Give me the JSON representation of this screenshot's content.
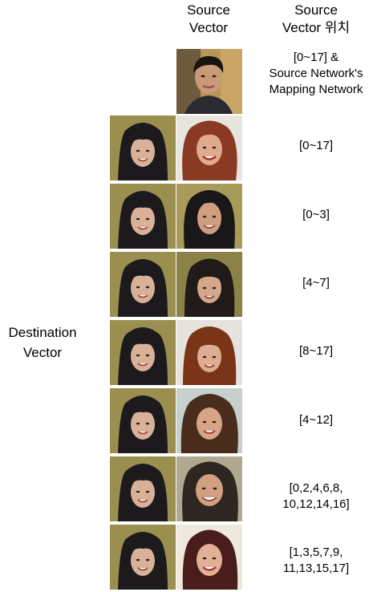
{
  "header": {
    "source_vector": "Source\nVector",
    "source_position": "Source\nVector 위치"
  },
  "destination_label": "Destination\nVector",
  "source_row": {
    "position": "[0~17] &\nSource Network's\nMapping Network"
  },
  "rows": [
    {
      "position": "[0~17]"
    },
    {
      "position": "[0~3]"
    },
    {
      "position": "[4~7]"
    },
    {
      "position": "[8~17]"
    },
    {
      "position": "[4~12]"
    },
    {
      "position": "[0,2,4,6,8,\n10,12,14,16]"
    },
    {
      "position": "[1,3,5,7,9,\n11,13,15,17]"
    }
  ],
  "image_descriptions": {
    "source": "man-portrait",
    "destination": "woman-with-bangs-portrait",
    "results": [
      "wavy-red-hair-woman",
      "dark-hair-woman",
      "bangs-woman",
      "auburn-bangs-woman",
      "brown-wavy-woman",
      "smiling-woman",
      "dark-bob-woman"
    ]
  }
}
